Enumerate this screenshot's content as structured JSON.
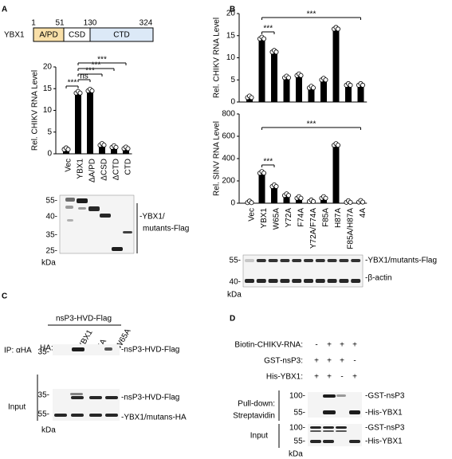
{
  "panel_labels": [
    "A",
    "B",
    "C",
    "D"
  ],
  "domain": {
    "protein": "YBX1",
    "segments": [
      "A/PD",
      "CSD",
      "CTD"
    ],
    "positions": [
      1,
      51,
      130,
      324
    ]
  },
  "chart_data": [
    {
      "type": "bar",
      "ylabel": "Rel. CHIKV RNA Level",
      "categories": [
        "Vec",
        "YBX1",
        "ΔA/PD",
        "ΔCSD",
        "ΔCTD",
        "CTD"
      ],
      "values": [
        1,
        14,
        14.5,
        2,
        1.5,
        1.2
      ],
      "color": "#000000",
      "ylim": [
        0,
        20
      ],
      "yticks": [
        0,
        5,
        10,
        15,
        20
      ],
      "annotations": [
        "***",
        "ns",
        "***",
        "***",
        "***"
      ]
    },
    {
      "type": "bar",
      "ylabel": "Rel. CHIKV RNA Level",
      "values": [
        1,
        14.3,
        11.3,
        5.5,
        6,
        3.2,
        5,
        16.5,
        3.8,
        3.8
      ],
      "color": "#000000",
      "ylim": [
        0,
        20
      ],
      "yticks": [
        0,
        5,
        10,
        15,
        20
      ],
      "annotations": [
        "***",
        "***"
      ]
    },
    {
      "type": "bar",
      "ylabel": "Rel. SINV RNA Level",
      "categories": [
        "Vec",
        "YBX1",
        "W65A",
        "Y72A",
        "F74A",
        "Y72A/F74A",
        "F85A",
        "H87A",
        "F85A/H87A",
        "4A"
      ],
      "values": [
        5,
        270,
        150,
        70,
        45,
        15,
        45,
        520,
        8,
        10
      ],
      "color": "#000000",
      "ylim": [
        0,
        800
      ],
      "yticks": [
        0,
        200,
        400,
        600,
        800
      ],
      "annotations": [
        "***",
        "***"
      ]
    }
  ],
  "blot_a": {
    "markers": [
      "55-",
      "40-",
      "35-",
      "25-"
    ],
    "label": [
      "-YBX1/",
      "mutants-Flag"
    ],
    "unit": "kDa"
  },
  "blot_b": {
    "markers": [
      "55-",
      "40-"
    ],
    "labels": [
      "-YBX1/mutants-Flag",
      "-β-actin"
    ],
    "unit": "kDa"
  },
  "panel_c": {
    "title": "nsP3-HVD-Flag",
    "ha_label": "HA:",
    "lanes": [
      "-",
      "YBX1",
      "4A",
      "W65A"
    ],
    "ip_label": "IP: αHA",
    "ip_marker": "35-",
    "ip_band": "-nsP3-HVD-Flag",
    "input_label": "Input",
    "input_markers": [
      "35-",
      "55-"
    ],
    "input_bands": [
      "-nsP3-HVD-Flag",
      "-YBX1/mutans-HA"
    ],
    "unit": "kDa"
  },
  "panel_d": {
    "rows": [
      {
        "label": "Biotin-CHIKV-RNA:",
        "signs": [
          "-",
          "+",
          "+",
          "+"
        ]
      },
      {
        "label": "GST-nsP3:",
        "signs": [
          "+",
          "+",
          "+",
          "-"
        ]
      },
      {
        "label": "His-YBX1:",
        "signs": [
          "+",
          "+",
          "-",
          "+"
        ]
      }
    ],
    "pulldown_label": [
      "Pull-down:",
      "Streptavidin"
    ],
    "pulldown_markers": [
      "100-",
      "55-"
    ],
    "pulldown_bands": [
      "-GST-nsP3",
      "-His-YBX1"
    ],
    "input_label": "Input",
    "input_markers": [
      "100-",
      "55-"
    ],
    "input_bands": [
      "-GST-nsP3",
      "-His-YBX1"
    ],
    "unit": "kDa"
  }
}
